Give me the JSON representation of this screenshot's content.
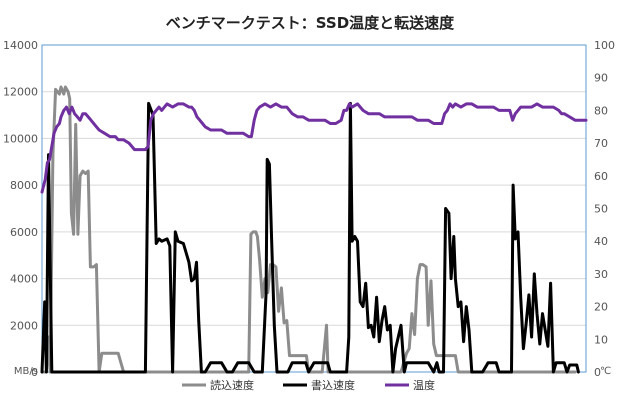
{
  "chart_data": {
    "type": "line",
    "title": "ベンチマークテスト：SSD温度と転送速度",
    "left_axis": {
      "unit": "MB/s",
      "ylim": [
        0,
        14000
      ],
      "ticks": [
        0,
        2000,
        4000,
        6000,
        8000,
        10000,
        12000,
        14000
      ]
    },
    "right_axis": {
      "unit": "℃",
      "ylim": [
        0,
        100
      ],
      "ticks": [
        0,
        10,
        20,
        30,
        40,
        50,
        60,
        70,
        80,
        90,
        100
      ]
    },
    "x_range": [
      0,
      100
    ],
    "grid": true,
    "legend_position": "bottom",
    "series": [
      {
        "name": "読込速度",
        "color": "#8c8c8c",
        "axis": "left",
        "points": [
          [
            0,
            0
          ],
          [
            0.8,
            0
          ],
          [
            1.2,
            1500
          ],
          [
            1.5,
            0
          ],
          [
            2,
            9300
          ],
          [
            2.5,
            12100
          ],
          [
            3.2,
            11900
          ],
          [
            3.5,
            12200
          ],
          [
            4,
            11900
          ],
          [
            4.3,
            12200
          ],
          [
            4.8,
            12000
          ],
          [
            5.1,
            11700
          ],
          [
            5.4,
            6800
          ],
          [
            5.8,
            5900
          ],
          [
            6.2,
            10600
          ],
          [
            6.6,
            5900
          ],
          [
            7,
            8400
          ],
          [
            7.5,
            8600
          ],
          [
            8,
            8500
          ],
          [
            8.5,
            8600
          ],
          [
            8.9,
            4500
          ],
          [
            9.5,
            4500
          ],
          [
            10,
            4600
          ],
          [
            10.5,
            0
          ],
          [
            11,
            800
          ],
          [
            12.5,
            800
          ],
          [
            14,
            800
          ],
          [
            15,
            0
          ],
          [
            19,
            0
          ],
          [
            21,
            0
          ],
          [
            26,
            0
          ],
          [
            32,
            0
          ],
          [
            36,
            0
          ],
          [
            38,
            0
          ],
          [
            38.4,
            5900
          ],
          [
            38.8,
            6000
          ],
          [
            39.3,
            6000
          ],
          [
            39.6,
            5800
          ],
          [
            40,
            4800
          ],
          [
            40.5,
            3200
          ],
          [
            41,
            4000
          ],
          [
            41.5,
            3400
          ],
          [
            42,
            4600
          ],
          [
            42.5,
            4600
          ],
          [
            43,
            4500
          ],
          [
            43.5,
            2600
          ],
          [
            44,
            3600
          ],
          [
            44.5,
            2100
          ],
          [
            45,
            2200
          ],
          [
            45.5,
            700
          ],
          [
            47,
            700
          ],
          [
            48.6,
            700
          ],
          [
            49,
            0
          ],
          [
            51.5,
            0
          ],
          [
            52.3,
            2000
          ],
          [
            52.6,
            0
          ],
          [
            56,
            0
          ],
          [
            62,
            0
          ],
          [
            66,
            0
          ],
          [
            67,
            800
          ],
          [
            67.5,
            1000
          ],
          [
            68,
            2500
          ],
          [
            68.5,
            1600
          ],
          [
            69,
            4000
          ],
          [
            69.5,
            4600
          ],
          [
            70,
            4600
          ],
          [
            70.6,
            4500
          ],
          [
            71,
            2000
          ],
          [
            71.5,
            3900
          ],
          [
            72,
            1200
          ],
          [
            72.5,
            700
          ],
          [
            74,
            700
          ],
          [
            75.5,
            700
          ],
          [
            76,
            700
          ],
          [
            76.5,
            0
          ],
          [
            82,
            0
          ],
          [
            87,
            0
          ],
          [
            91,
            0
          ],
          [
            96,
            0
          ],
          [
            98,
            0
          ]
        ]
      },
      {
        "name": "書込速度",
        "color": "#000000",
        "axis": "left",
        "points": [
          [
            0,
            0
          ],
          [
            0.5,
            3000
          ],
          [
            0.8,
            0
          ],
          [
            1.2,
            9300
          ],
          [
            1.8,
            0
          ],
          [
            2.5,
            0
          ],
          [
            10,
            0
          ],
          [
            18,
            0
          ],
          [
            19,
            0
          ],
          [
            19.6,
            11500
          ],
          [
            20.4,
            11000
          ],
          [
            21,
            5500
          ],
          [
            21.5,
            5700
          ],
          [
            22,
            5600
          ],
          [
            23,
            5700
          ],
          [
            23.5,
            5400
          ],
          [
            24,
            0
          ],
          [
            24.5,
            6000
          ],
          [
            25,
            5600
          ],
          [
            26,
            5500
          ],
          [
            27,
            4700
          ],
          [
            27.5,
            3900
          ],
          [
            28,
            4000
          ],
          [
            28.4,
            4700
          ],
          [
            28.8,
            2200
          ],
          [
            29.3,
            0
          ],
          [
            30,
            0
          ],
          [
            31,
            400
          ],
          [
            33,
            400
          ],
          [
            34,
            0
          ],
          [
            35,
            0
          ],
          [
            36,
            400
          ],
          [
            38,
            400
          ],
          [
            39,
            0
          ],
          [
            40.5,
            0
          ],
          [
            41.2,
            3400
          ],
          [
            41.4,
            9100
          ],
          [
            41.8,
            8900
          ],
          [
            42.2,
            5700
          ],
          [
            42.7,
            2000
          ],
          [
            43.2,
            0
          ],
          [
            45.2,
            0
          ],
          [
            46,
            400
          ],
          [
            48.5,
            400
          ],
          [
            49,
            0
          ],
          [
            50,
            400
          ],
          [
            52.5,
            400
          ],
          [
            53,
            0
          ],
          [
            55,
            0
          ],
          [
            56,
            0
          ],
          [
            56.4,
            1500
          ],
          [
            56.7,
            11500
          ],
          [
            57,
            5600
          ],
          [
            57.5,
            5800
          ],
          [
            58,
            5600
          ],
          [
            58.5,
            3000
          ],
          [
            59,
            2800
          ],
          [
            59.5,
            3800
          ],
          [
            60,
            1900
          ],
          [
            60.5,
            2000
          ],
          [
            61,
            1500
          ],
          [
            61.5,
            3200
          ],
          [
            62,
            1300
          ],
          [
            62.5,
            2200
          ],
          [
            63,
            2800
          ],
          [
            63.5,
            1800
          ],
          [
            64,
            2000
          ],
          [
            64.5,
            0
          ],
          [
            65,
            1000
          ],
          [
            66,
            2000
          ],
          [
            66.6,
            0
          ],
          [
            67,
            400
          ],
          [
            71,
            400
          ],
          [
            72,
            0
          ],
          [
            72.6,
            400
          ],
          [
            73,
            0
          ],
          [
            73.8,
            0
          ],
          [
            74.2,
            7000
          ],
          [
            74.8,
            6800
          ],
          [
            75.2,
            4000
          ],
          [
            75.7,
            5800
          ],
          [
            76,
            4000
          ],
          [
            76.5,
            2800
          ],
          [
            77,
            3000
          ],
          [
            77.5,
            1300
          ],
          [
            78,
            2800
          ],
          [
            78.5,
            1800
          ],
          [
            79,
            0
          ],
          [
            81,
            0
          ],
          [
            82,
            400
          ],
          [
            83.5,
            400
          ],
          [
            84,
            0
          ],
          [
            86.3,
            0
          ],
          [
            86.6,
            8000
          ],
          [
            87,
            5700
          ],
          [
            87.5,
            6000
          ],
          [
            88,
            3200
          ],
          [
            88.5,
            1000
          ],
          [
            89,
            2100
          ],
          [
            89.5,
            3300
          ],
          [
            90,
            1500
          ],
          [
            90.5,
            4200
          ],
          [
            91,
            2500
          ],
          [
            91.5,
            1200
          ],
          [
            92,
            2500
          ],
          [
            92.5,
            1800
          ],
          [
            93,
            1100
          ],
          [
            93.5,
            3800
          ],
          [
            94,
            0
          ],
          [
            94.5,
            400
          ],
          [
            95,
            400
          ],
          [
            96,
            400
          ],
          [
            96.5,
            0
          ],
          [
            97,
            300
          ],
          [
            98.3,
            300
          ],
          [
            98.6,
            0
          ]
        ]
      },
      {
        "name": "温度",
        "color": "#7030a0",
        "axis": "right",
        "points": [
          [
            0,
            55
          ],
          [
            0.6,
            59
          ],
          [
            1,
            64
          ],
          [
            1.4,
            65
          ],
          [
            1.8,
            69
          ],
          [
            2.2,
            73
          ],
          [
            2.7,
            75
          ],
          [
            3.2,
            76
          ],
          [
            3.5,
            78
          ],
          [
            4,
            80
          ],
          [
            4.5,
            81
          ],
          [
            5,
            79
          ],
          [
            5.5,
            81
          ],
          [
            6,
            79
          ],
          [
            6.5,
            78
          ],
          [
            7,
            77
          ],
          [
            7.5,
            79
          ],
          [
            8,
            79
          ],
          [
            8.5,
            78
          ],
          [
            9,
            77
          ],
          [
            9.5,
            76
          ],
          [
            10,
            75
          ],
          [
            10.5,
            74
          ],
          [
            11.5,
            73
          ],
          [
            12.5,
            72
          ],
          [
            13.5,
            72
          ],
          [
            14,
            71
          ],
          [
            15,
            71
          ],
          [
            16,
            70
          ],
          [
            16.5,
            69
          ],
          [
            17,
            68
          ],
          [
            18,
            68
          ],
          [
            19,
            68
          ],
          [
            19.5,
            69
          ],
          [
            20,
            77
          ],
          [
            20.5,
            79
          ],
          [
            21,
            80
          ],
          [
            21.5,
            81
          ],
          [
            22,
            80
          ],
          [
            22.5,
            81
          ],
          [
            23,
            82
          ],
          [
            24,
            81
          ],
          [
            25,
            82
          ],
          [
            26,
            82
          ],
          [
            27,
            81
          ],
          [
            27.5,
            81
          ],
          [
            28,
            80
          ],
          [
            28.5,
            78
          ],
          [
            29,
            77
          ],
          [
            29.5,
            76
          ],
          [
            30,
            75
          ],
          [
            31,
            74
          ],
          [
            32,
            74
          ],
          [
            33,
            74
          ],
          [
            34,
            73
          ],
          [
            35,
            73
          ],
          [
            36,
            73
          ],
          [
            37,
            73
          ],
          [
            38,
            72
          ],
          [
            38.5,
            72
          ],
          [
            39,
            77
          ],
          [
            39.5,
            80
          ],
          [
            40,
            81
          ],
          [
            41,
            82
          ],
          [
            42,
            81
          ],
          [
            43,
            82
          ],
          [
            44,
            81
          ],
          [
            45,
            81
          ],
          [
            46,
            79
          ],
          [
            47,
            78
          ],
          [
            48,
            78
          ],
          [
            49,
            77
          ],
          [
            50,
            77
          ],
          [
            51,
            77
          ],
          [
            52,
            77
          ],
          [
            53,
            76
          ],
          [
            54,
            76
          ],
          [
            55,
            77
          ],
          [
            55.5,
            80
          ],
          [
            56,
            80
          ],
          [
            56.5,
            82
          ],
          [
            57,
            81
          ],
          [
            58,
            82
          ],
          [
            59,
            80
          ],
          [
            60,
            79
          ],
          [
            61,
            79
          ],
          [
            62,
            79
          ],
          [
            63,
            78
          ],
          [
            64,
            78
          ],
          [
            65,
            78
          ],
          [
            66,
            78
          ],
          [
            67,
            78
          ],
          [
            68,
            78
          ],
          [
            69,
            77
          ],
          [
            70,
            77
          ],
          [
            71,
            77
          ],
          [
            72,
            76
          ],
          [
            73,
            76
          ],
          [
            73.5,
            76
          ],
          [
            74,
            79
          ],
          [
            74.5,
            80
          ],
          [
            75,
            82
          ],
          [
            75.5,
            81
          ],
          [
            76,
            82
          ],
          [
            77,
            81
          ],
          [
            78,
            82
          ],
          [
            79,
            82
          ],
          [
            80,
            81
          ],
          [
            81,
            81
          ],
          [
            82,
            81
          ],
          [
            83,
            81
          ],
          [
            84,
            80
          ],
          [
            85,
            80
          ],
          [
            86,
            80
          ],
          [
            86.5,
            77
          ],
          [
            87,
            79
          ],
          [
            87.5,
            80
          ],
          [
            88,
            81
          ],
          [
            89,
            81
          ],
          [
            90,
            81
          ],
          [
            91,
            82
          ],
          [
            92,
            81
          ],
          [
            93,
            81
          ],
          [
            94,
            81
          ],
          [
            95,
            80
          ],
          [
            95.5,
            79
          ],
          [
            96,
            79
          ],
          [
            97,
            78
          ],
          [
            98,
            77
          ],
          [
            99,
            77
          ],
          [
            100,
            77
          ]
        ]
      }
    ]
  }
}
